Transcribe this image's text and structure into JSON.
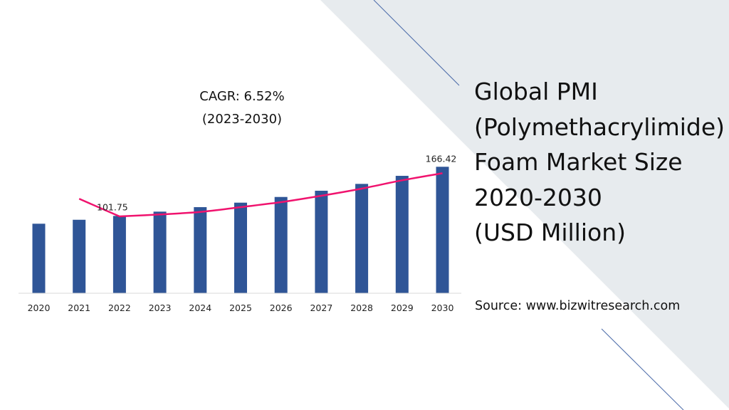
{
  "title_lines": [
    "Global PMI",
    "(Polymethacrylimide)",
    "Foam Market Size",
    "2020-2030",
    "(USD Million)"
  ],
  "source": "Source: www.bizwitresearch.com",
  "cagr": {
    "line1": "CAGR: 6.52%",
    "line2": "(2023-2030)"
  },
  "colors": {
    "bar": "#2f5597",
    "trend": "#f0136e",
    "background_panel": "#e7ebee",
    "accent_line": "#4a6aa8"
  },
  "chart_data": {
    "type": "bar",
    "categories": [
      "2020",
      "2021",
      "2022",
      "2023",
      "2024",
      "2025",
      "2026",
      "2027",
      "2028",
      "2029",
      "2030"
    ],
    "series": [
      {
        "type": "bar",
        "values": [
          91.5,
          96.7,
          101.75,
          107.4,
          113.3,
          119.2,
          126.7,
          134.9,
          143.9,
          154.5,
          166.42
        ]
      },
      {
        "type": "line",
        "values": [
          null,
          124.3,
          101.1,
          103.7,
          107.0,
          113.3,
          119.9,
          128.3,
          137.7,
          148.6,
          157.9
        ]
      }
    ],
    "data_labels": [
      {
        "category": "2022",
        "text": "101.75"
      },
      {
        "category": "2030",
        "text": "166.42"
      }
    ],
    "ylim": [
      0,
      180
    ],
    "grid": false,
    "legend": "none",
    "title": "",
    "xlabel": "",
    "ylabel": ""
  }
}
